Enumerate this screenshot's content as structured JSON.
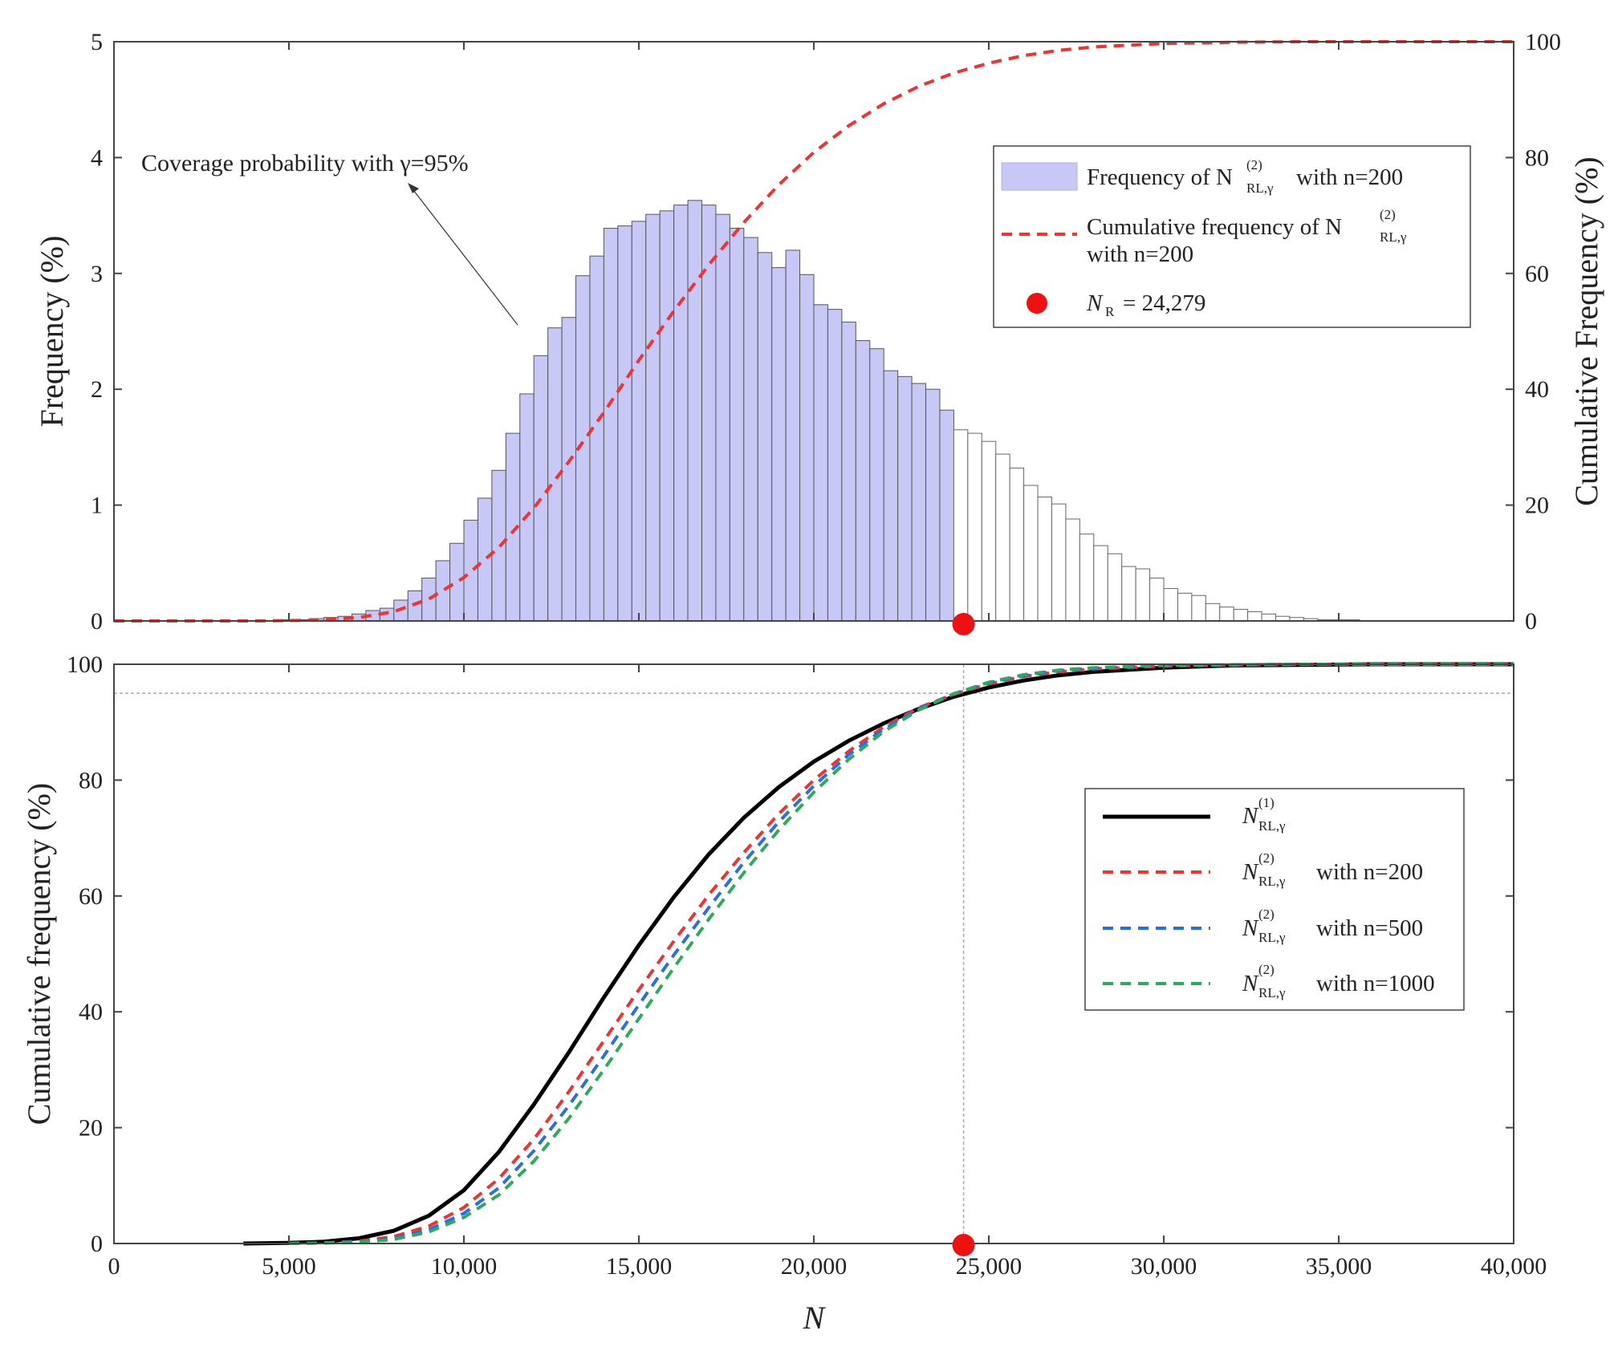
{
  "chart_data": [
    {
      "type": "bar",
      "panel": "top",
      "xlabel": "",
      "ylabel": "Frequency (%)",
      "y2label": "Cumulative Frequency (%)",
      "xlim": [
        0,
        40000
      ],
      "ylim": [
        0,
        5
      ],
      "y2lim": [
        0,
        100
      ],
      "yticks": [
        "0",
        "1",
        "2",
        "3",
        "4",
        "5"
      ],
      "y2ticks": [
        "0",
        "20",
        "40",
        "60",
        "80",
        "100"
      ],
      "bin_width": 400,
      "bin_start": 4800,
      "values": [
        0.01,
        0.01,
        0.02,
        0.03,
        0.04,
        0.06,
        0.09,
        0.11,
        0.18,
        0.26,
        0.37,
        0.52,
        0.67,
        0.87,
        1.06,
        1.3,
        1.62,
        1.96,
        2.29,
        2.53,
        2.62,
        2.98,
        3.15,
        3.39,
        3.41,
        3.45,
        3.51,
        3.54,
        3.59,
        3.63,
        3.59,
        3.51,
        3.39,
        3.31,
        3.18,
        3.05,
        3.2,
        2.99,
        2.73,
        2.69,
        2.58,
        2.42,
        2.35,
        2.16,
        2.11,
        2.05,
        2.0,
        1.82,
        1.65,
        1.62,
        1.55,
        1.44,
        1.32,
        1.17,
        1.07,
        1.01,
        0.88,
        0.75,
        0.65,
        0.58,
        0.47,
        0.45,
        0.37,
        0.28,
        0.24,
        0.22,
        0.15,
        0.12,
        0.1,
        0.08,
        0.06,
        0.04,
        0.03,
        0.02,
        0.01,
        0.01,
        0.01
      ],
      "highlight_max_x": 24279,
      "cumulative_x": [
        0,
        2000,
        4000,
        5000,
        6000,
        7000,
        8000,
        9000,
        10000,
        11000,
        12000,
        13000,
        14000,
        15000,
        16000,
        17000,
        18000,
        19000,
        20000,
        21000,
        22000,
        23000,
        24000,
        25000,
        26000,
        27000,
        28000,
        30000,
        32000,
        34000,
        36000,
        38000,
        40000
      ],
      "cumulative_y": [
        0,
        0,
        0,
        0.05,
        0.2,
        0.6,
        1.6,
        3.8,
        7.5,
        12.7,
        19.5,
        27.5,
        36.0,
        45.0,
        53.5,
        61.5,
        68.8,
        75.3,
        80.9,
        85.5,
        89.3,
        92.3,
        94.6,
        96.3,
        97.6,
        98.5,
        99.1,
        99.7,
        99.9,
        100,
        100,
        100,
        100
      ],
      "annotation": "Coverage probability with γ=95%",
      "marker": {
        "x": 24279,
        "y": 0
      },
      "legend": {
        "hist_label_pre": "Frequency of N",
        "hist_label_post": "with n=200",
        "cum_label_line1": "Cumulative frequency of N",
        "cum_label_line2": "with n=200",
        "marker_label": "N",
        "marker_sub": "R",
        "marker_value": "= 24,279",
        "sup": "(2)",
        "sub": "RL,γ"
      }
    },
    {
      "type": "line",
      "panel": "bottom",
      "xlabel": "N",
      "ylabel": "Cumulative frequency (%)",
      "xlim": [
        0,
        40000
      ],
      "ylim": [
        0,
        100
      ],
      "xticks": [
        "0",
        "5,000",
        "10,000",
        "15,000",
        "20,000",
        "25,000",
        "30,000",
        "35,000",
        "40,000"
      ],
      "yticks": [
        "0",
        "20",
        "40",
        "60",
        "80",
        "100"
      ],
      "reference_y": 95,
      "reference_x": 24279,
      "marker": {
        "x": 24279,
        "y": 0
      },
      "series": [
        {
          "name": "N(1) RL,γ",
          "color": "#000000",
          "dashed": false,
          "x": [
            3700,
            5000,
            6000,
            7000,
            8000,
            9000,
            10000,
            11000,
            12000,
            13000,
            14000,
            15000,
            16000,
            17000,
            18000,
            19000,
            20000,
            21000,
            22000,
            23000,
            24000,
            25000,
            26000,
            27000,
            28000,
            30000,
            32000,
            34000,
            36000,
            40000
          ],
          "y": [
            0,
            0.1,
            0.3,
            0.9,
            2.2,
            4.8,
            9.2,
            15.8,
            24.0,
            33.0,
            42.5,
            51.5,
            59.8,
            67.2,
            73.5,
            78.8,
            83.2,
            86.8,
            89.8,
            92.3,
            94.4,
            96.0,
            97.2,
            98.1,
            98.7,
            99.4,
            99.8,
            99.9,
            100,
            100
          ]
        },
        {
          "name": "N(2) RL,γ with n=200",
          "color": "#ee3333",
          "dashed": true,
          "x": [
            5000,
            6000,
            7000,
            8000,
            9000,
            10000,
            11000,
            12000,
            13000,
            14000,
            15000,
            16000,
            17000,
            18000,
            19000,
            20000,
            21000,
            22000,
            23000,
            24000,
            25000,
            26000,
            27000,
            28000,
            30000,
            32000,
            34000,
            36000,
            40000
          ],
          "y": [
            0,
            0.1,
            0.4,
            1.2,
            3.0,
            6.2,
            11.2,
            18.0,
            26.2,
            35.0,
            43.8,
            52.2,
            60.2,
            67.5,
            74.2,
            80.0,
            85.0,
            89.2,
            92.5,
            94.8,
            96.6,
            97.9,
            98.7,
            99.2,
            99.7,
            99.9,
            100,
            100,
            100
          ]
        },
        {
          "name": "N(2) RL,γ with n=500",
          "color": "#2a6fe0",
          "dashed": true,
          "x": [
            5000,
            6000,
            7000,
            8000,
            9000,
            10000,
            11000,
            12000,
            13000,
            14000,
            15000,
            16000,
            17000,
            18000,
            19000,
            20000,
            21000,
            22000,
            23000,
            24000,
            25000,
            26000,
            27000,
            28000,
            30000,
            32000,
            34000,
            36000,
            40000
          ],
          "y": [
            0,
            0.1,
            0.3,
            0.9,
            2.4,
            5.2,
            9.6,
            16.0,
            23.8,
            32.4,
            41.2,
            49.8,
            58.0,
            65.8,
            72.8,
            79.0,
            84.4,
            88.8,
            92.3,
            94.9,
            96.8,
            98.0,
            98.9,
            99.3,
            99.8,
            99.9,
            100,
            100,
            100
          ]
        },
        {
          "name": "N(2) RL,γ with n=1000",
          "color": "#2fa860",
          "dashed": true,
          "x": [
            5000,
            6000,
            7000,
            8000,
            9000,
            10000,
            11000,
            12000,
            13000,
            14000,
            15000,
            16000,
            17000,
            18000,
            19000,
            20000,
            21000,
            22000,
            23000,
            24000,
            25000,
            26000,
            27000,
            28000,
            30000,
            32000,
            34000,
            36000,
            40000
          ],
          "y": [
            0,
            0.1,
            0.2,
            0.7,
            2.0,
            4.5,
            8.4,
            14.2,
            21.6,
            30.0,
            38.8,
            47.6,
            56.0,
            64.0,
            71.4,
            77.9,
            83.6,
            88.4,
            92.1,
            94.9,
            96.9,
            98.2,
            99.0,
            99.4,
            99.8,
            99.9,
            100,
            100,
            100
          ]
        }
      ],
      "legend": {
        "l1_base": "N",
        "l1_sup": "(1)",
        "l1_sub": "RL,γ",
        "l2_base": "N",
        "l2_sup": "(2)",
        "l2_sub": "RL,γ",
        "l2_text": "with n=200",
        "l3_text": "with n=500",
        "l4_text": "with n=1000"
      }
    }
  ]
}
